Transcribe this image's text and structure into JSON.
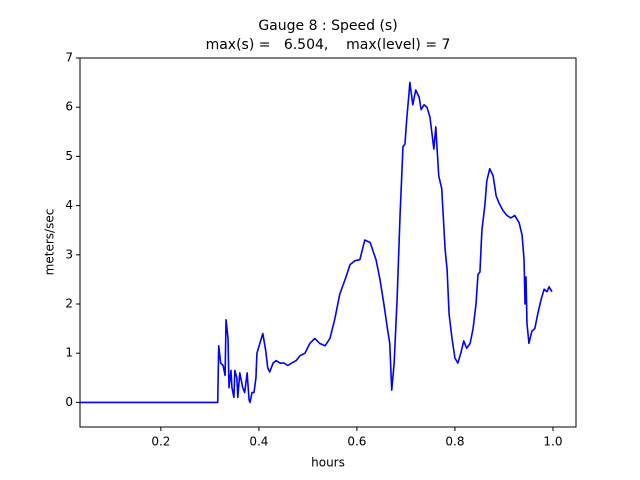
{
  "chart_data": {
    "type": "line",
    "title": "Gauge 8 : Speed (s)",
    "subtitle": "max(s) =   6.504,    max(level) = 7",
    "xlabel": "hours",
    "ylabel": "meters/sec",
    "xlim": [
      0.035,
      1.047
    ],
    "ylim": [
      -0.5,
      7
    ],
    "xticks": [
      0.2,
      0.4,
      0.6,
      0.8,
      {
        "value": 1.0,
        "label": "1.0"
      }
    ],
    "yticks": [
      0,
      1,
      2,
      3,
      4,
      5,
      6,
      7
    ],
    "series": [
      {
        "color": "#0000ff",
        "x": [
          0.035,
          0.316,
          0.318,
          0.322,
          0.327,
          0.331,
          0.333,
          0.337,
          0.339,
          0.343,
          0.345,
          0.349,
          0.351,
          0.355,
          0.357,
          0.361,
          0.365,
          0.367,
          0.371,
          0.376,
          0.38,
          0.382,
          0.386,
          0.39,
          0.394,
          0.396,
          0.402,
          0.408,
          0.414,
          0.418,
          0.422,
          0.429,
          0.435,
          0.443,
          0.451,
          0.459,
          0.467,
          0.476,
          0.484,
          0.494,
          0.504,
          0.514,
          0.524,
          0.535,
          0.545,
          0.555,
          0.565,
          0.576,
          0.586,
          0.596,
          0.606,
          0.616,
          0.627,
          0.639,
          0.647,
          0.655,
          0.663,
          0.667,
          0.671,
          0.676,
          0.682,
          0.688,
          0.694,
          0.698,
          0.702,
          0.706,
          0.708,
          0.714,
          0.72,
          0.727,
          0.731,
          0.737,
          0.743,
          0.749,
          0.757,
          0.761,
          0.763,
          0.767,
          0.773,
          0.78,
          0.784,
          0.788,
          0.794,
          0.8,
          0.806,
          0.812,
          0.818,
          0.824,
          0.831,
          0.837,
          0.843,
          0.847,
          0.851,
          0.855,
          0.861,
          0.865,
          0.871,
          0.878,
          0.884,
          0.89,
          0.898,
          0.906,
          0.914,
          0.922,
          0.931,
          0.937,
          0.941,
          0.943,
          0.945,
          0.947,
          0.951,
          0.957,
          0.963,
          0.969,
          0.976,
          0.982,
          0.988,
          0.992,
          0.998
        ],
        "values": [
          0,
          0,
          1.15,
          0.8,
          0.75,
          0.55,
          1.68,
          1.3,
          0.3,
          0.65,
          0.3,
          0.1,
          0.65,
          0.5,
          0.1,
          0.6,
          0.4,
          0.3,
          0.2,
          0.6,
          0.05,
          0.0,
          0.2,
          0.2,
          0.5,
          1.0,
          1.2,
          1.4,
          1.05,
          0.7,
          0.62,
          0.8,
          0.85,
          0.8,
          0.8,
          0.75,
          0.8,
          0.85,
          0.95,
          1.0,
          1.2,
          1.3,
          1.2,
          1.15,
          1.3,
          1.7,
          2.2,
          2.5,
          2.8,
          2.88,
          2.9,
          3.3,
          3.25,
          2.9,
          2.5,
          2.0,
          1.45,
          1.2,
          0.25,
          0.8,
          2.1,
          3.8,
          5.2,
          5.25,
          5.8,
          6.25,
          6.504,
          6.05,
          6.35,
          6.2,
          5.95,
          6.05,
          6.0,
          5.8,
          5.15,
          5.6,
          5.25,
          4.6,
          4.35,
          3.1,
          2.7,
          1.8,
          1.3,
          0.9,
          0.8,
          1.0,
          1.25,
          1.1,
          1.2,
          1.5,
          2.0,
          2.6,
          2.65,
          3.5,
          4.0,
          4.5,
          4.75,
          4.6,
          4.2,
          4.05,
          3.9,
          3.8,
          3.75,
          3.8,
          3.65,
          3.4,
          2.9,
          2.0,
          2.55,
          1.6,
          1.2,
          1.45,
          1.5,
          1.8,
          2.1,
          2.3,
          2.25,
          2.35,
          2.25
        ]
      }
    ]
  }
}
